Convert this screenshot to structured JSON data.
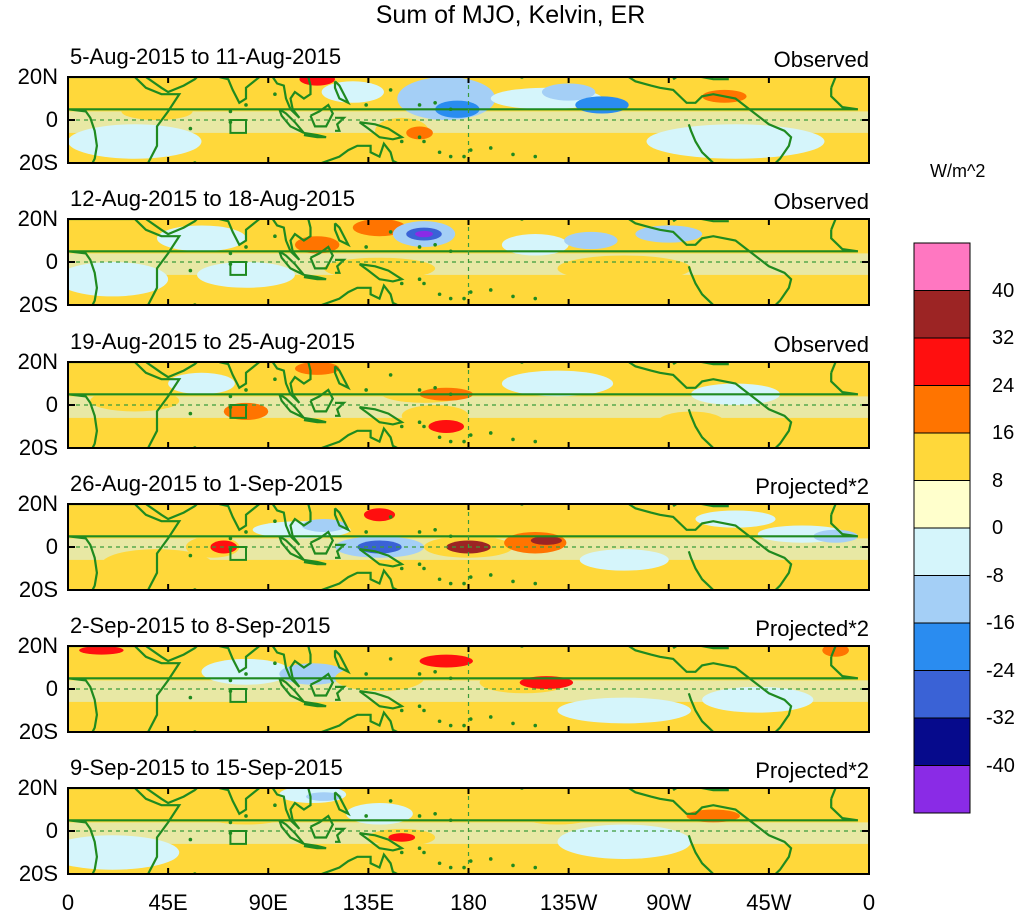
{
  "figure": {
    "title": "Sum of MJO, Kelvin, ER",
    "units": "W/m^2",
    "lat_labels": [
      "20N",
      "0",
      "20S"
    ],
    "lon_labels": [
      "0",
      "45E",
      "90E",
      "135E",
      "180",
      "135W",
      "90W",
      "45W",
      "0"
    ],
    "colors": {
      "land_outline": "#1f8a1f",
      "equator_dash": "#3a9a3a"
    }
  },
  "panels": [
    {
      "date_range": "5-Aug-2015 to 11-Aug-2015",
      "tag": "Observed"
    },
    {
      "date_range": "12-Aug-2015 to 18-Aug-2015",
      "tag": "Observed"
    },
    {
      "date_range": "19-Aug-2015 to 25-Aug-2015",
      "tag": "Observed"
    },
    {
      "date_range": "26-Aug-2015 to 1-Sep-2015",
      "tag": "Projected*2"
    },
    {
      "date_range": "2-Sep-2015 to 8-Sep-2015",
      "tag": "Projected*2"
    },
    {
      "date_range": "9-Sep-2015 to 15-Sep-2015",
      "tag": "Projected*2"
    }
  ],
  "colorbar": {
    "labels": [
      "40",
      "32",
      "24",
      "16",
      "8",
      "0",
      "-8",
      "-16",
      "-24",
      "-32",
      "-40"
    ],
    "colors_top_to_bottom": [
      "#ff77c1",
      "#9c2424",
      "#ff0f0f",
      "#ff7400",
      "#ffd83a",
      "#ffffcc",
      "#d5f5fb",
      "#a4cff6",
      "#2a8cf0",
      "#3a62d6",
      "#060a8c",
      "#8a2be6"
    ]
  }
}
